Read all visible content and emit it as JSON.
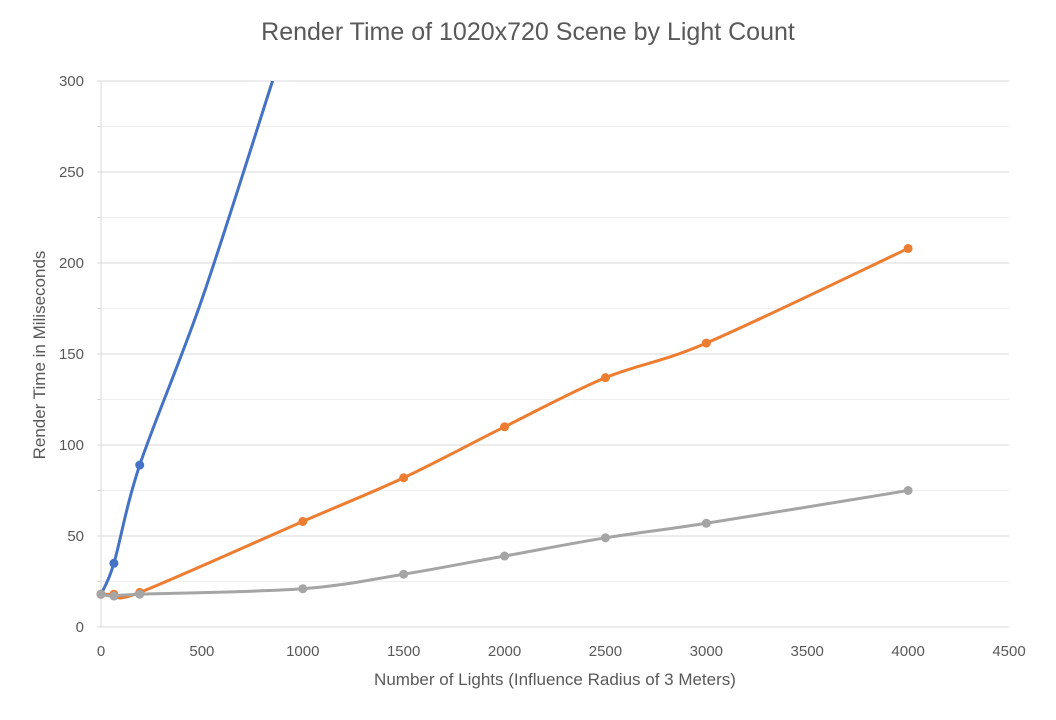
{
  "chart_data": {
    "type": "line",
    "title": "Render Time of 1020x720 Scene by Light Count",
    "xlabel": "Number of Lights (Influence Radius of 3 Meters)",
    "ylabel": "Render Time in Miliseconds",
    "xlim": [
      0,
      4500
    ],
    "ylim": [
      0,
      300
    ],
    "x_ticks": [
      "0",
      "500",
      "1000",
      "1500",
      "2000",
      "2500",
      "3000",
      "3500",
      "4000",
      "4500"
    ],
    "y_ticks": [
      "0",
      "50",
      "100",
      "150",
      "200",
      "250",
      "300"
    ],
    "grid": true,
    "legend": "none",
    "series": [
      {
        "color": "#4472C4",
        "points": [
          {
            "x": 0,
            "y": 18
          },
          {
            "x": 64,
            "y": 35
          },
          {
            "x": 192,
            "y": 89
          },
          {
            "x": 500,
            "y": 180
          },
          {
            "x": 850,
            "y": 300
          }
        ],
        "markers": [
          {
            "x": 0,
            "y": 18
          },
          {
            "x": 64,
            "y": 35
          },
          {
            "x": 192,
            "y": 89
          }
        ]
      },
      {
        "color": "#ED7D31",
        "points": [
          {
            "x": 0,
            "y": 18
          },
          {
            "x": 64,
            "y": 18
          },
          {
            "x": 192,
            "y": 19
          },
          {
            "x": 1000,
            "y": 58
          },
          {
            "x": 1500,
            "y": 82
          },
          {
            "x": 2000,
            "y": 110
          },
          {
            "x": 2500,
            "y": 137
          },
          {
            "x": 3000,
            "y": 156
          },
          {
            "x": 4000,
            "y": 208
          }
        ],
        "markers": [
          {
            "x": 0,
            "y": 18
          },
          {
            "x": 64,
            "y": 18
          },
          {
            "x": 192,
            "y": 19
          },
          {
            "x": 1000,
            "y": 58
          },
          {
            "x": 1500,
            "y": 82
          },
          {
            "x": 2000,
            "y": 110
          },
          {
            "x": 2500,
            "y": 137
          },
          {
            "x": 3000,
            "y": 156
          },
          {
            "x": 4000,
            "y": 208
          }
        ]
      },
      {
        "color": "#A5A5A5",
        "points": [
          {
            "x": 0,
            "y": 18
          },
          {
            "x": 64,
            "y": 17
          },
          {
            "x": 192,
            "y": 18
          },
          {
            "x": 1000,
            "y": 21
          },
          {
            "x": 1500,
            "y": 29
          },
          {
            "x": 2000,
            "y": 39
          },
          {
            "x": 2500,
            "y": 49
          },
          {
            "x": 3000,
            "y": 57
          },
          {
            "x": 4000,
            "y": 75
          }
        ],
        "markers": [
          {
            "x": 0,
            "y": 18
          },
          {
            "x": 64,
            "y": 17
          },
          {
            "x": 192,
            "y": 18
          },
          {
            "x": 1000,
            "y": 21
          },
          {
            "x": 1500,
            "y": 29
          },
          {
            "x": 2000,
            "y": 39
          },
          {
            "x": 2500,
            "y": 49
          },
          {
            "x": 3000,
            "y": 57
          },
          {
            "x": 4000,
            "y": 75
          }
        ]
      }
    ]
  }
}
